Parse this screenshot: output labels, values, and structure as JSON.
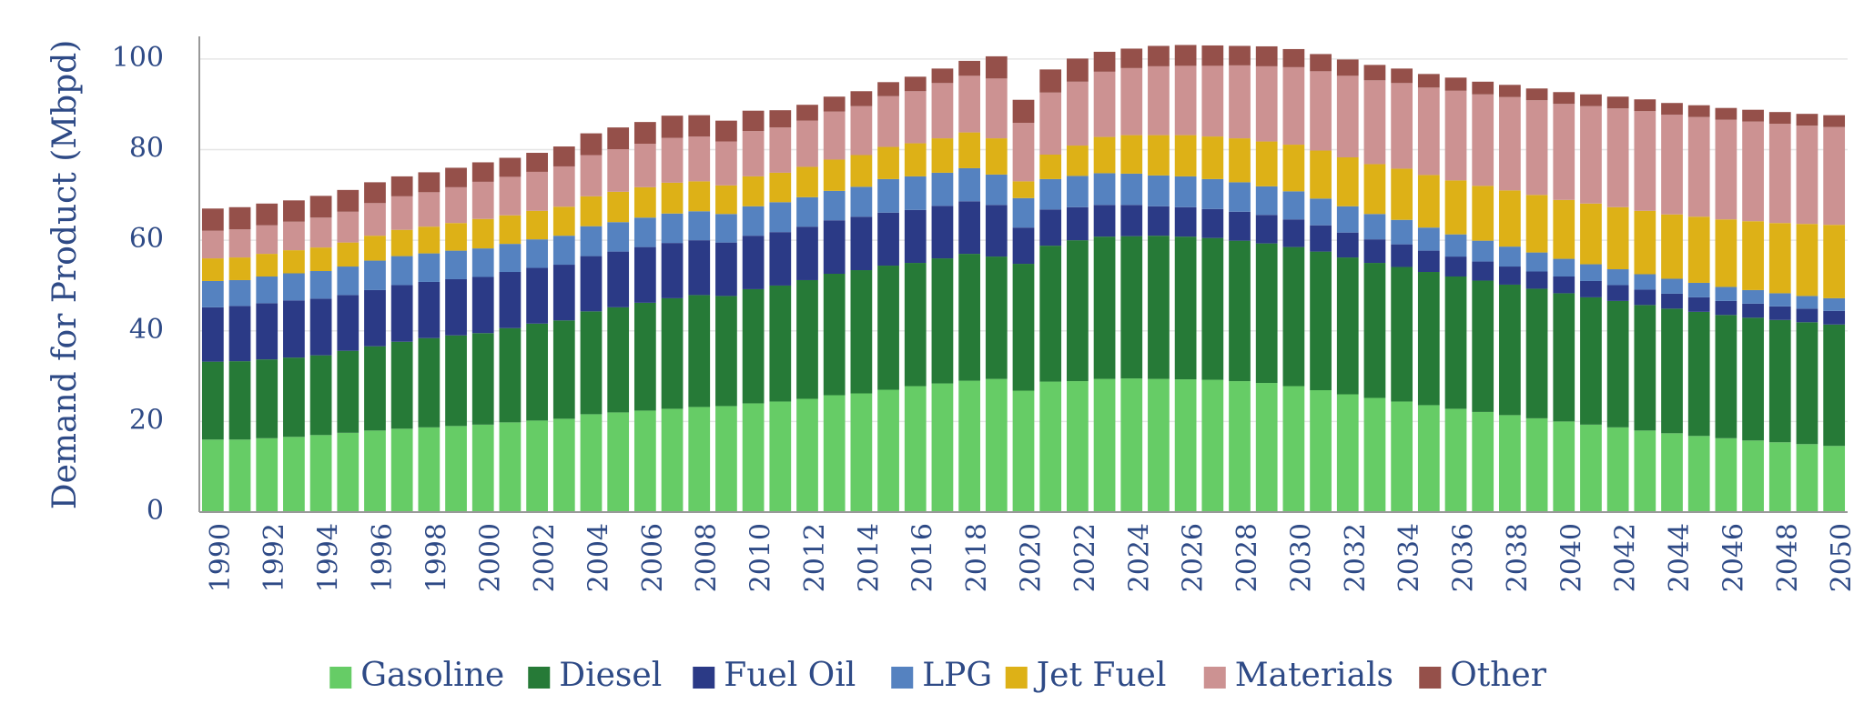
{
  "chart_data": {
    "type": "bar",
    "stacked": true,
    "title": "",
    "xlabel": "",
    "ylabel": "Demand for Product (Mbpd)",
    "ylim": [
      0,
      105
    ],
    "yticks": [
      "0",
      "20",
      "40",
      "60",
      "80",
      "100"
    ],
    "ytick_values": [
      0,
      20,
      40,
      60,
      80,
      100
    ],
    "grid": true,
    "legend_position": "bottom",
    "categories": [
      "1990",
      "1991",
      "1992",
      "1993",
      "1994",
      "1995",
      "1996",
      "1997",
      "1998",
      "1999",
      "2000",
      "2001",
      "2002",
      "2003",
      "2004",
      "2005",
      "2006",
      "2007",
      "2008",
      "2009",
      "2010",
      "2011",
      "2012",
      "2013",
      "2014",
      "2015",
      "2016",
      "2017",
      "2018",
      "2019",
      "2020",
      "2021",
      "2022",
      "2023",
      "2024",
      "2025",
      "2026",
      "2027",
      "2028",
      "2029",
      "2030",
      "2031",
      "2032",
      "2033",
      "2034",
      "2035",
      "2036",
      "2037",
      "2038",
      "2039",
      "2040",
      "2041",
      "2042",
      "2043",
      "2044",
      "2045",
      "2046",
      "2047",
      "2048",
      "2049",
      "2050"
    ],
    "xtick_labels": [
      "1990",
      "1992",
      "1994",
      "1996",
      "1998",
      "2000",
      "2002",
      "2004",
      "2006",
      "2008",
      "2010",
      "2012",
      "2014",
      "2016",
      "2018",
      "2020",
      "2022",
      "2024",
      "2026",
      "2028",
      "2030",
      "2032",
      "2034",
      "2036",
      "2038",
      "2040",
      "2042",
      "2044",
      "2046",
      "2048",
      "2050"
    ],
    "series": [
      {
        "name": "Gasoline",
        "color": "#66cc66",
        "values": [
          16,
          16,
          16.3,
          16.6,
          17,
          17.5,
          18,
          18.4,
          18.7,
          19,
          19.3,
          19.8,
          20.2,
          20.6,
          21.6,
          22,
          22.4,
          22.8,
          23.2,
          23.4,
          24,
          24.4,
          25,
          25.8,
          26.2,
          27,
          27.8,
          28.4,
          29,
          29.4,
          26.8,
          28.8,
          28.9,
          29.4,
          29.5,
          29.4,
          29.3,
          29.2,
          28.9,
          28.5,
          27.8,
          26.9,
          26,
          25.2,
          24.4,
          23.6,
          22.8,
          22.1,
          21.4,
          20.7,
          20,
          19.3,
          18.7,
          18,
          17.4,
          16.8,
          16.3,
          15.8,
          15.4,
          15,
          14.6
        ]
      },
      {
        "name": "Diesel",
        "color": "#267a37",
        "values": [
          17.2,
          17.3,
          17.4,
          17.5,
          17.6,
          18.1,
          18.6,
          19.2,
          19.7,
          20,
          20.2,
          20.8,
          21.4,
          21.7,
          22.7,
          23.2,
          23.8,
          24.4,
          24.7,
          24.3,
          25.2,
          25.6,
          26.2,
          26.8,
          27.2,
          27.4,
          27.2,
          27.6,
          28,
          27,
          28,
          30,
          31.1,
          31.4,
          31.4,
          31.6,
          31.5,
          31.3,
          31,
          30.8,
          30.7,
          30.6,
          30.2,
          29.8,
          29.7,
          29.4,
          29.2,
          29,
          28.8,
          28.6,
          28.3,
          28.1,
          27.9,
          27.7,
          27.5,
          27.4,
          27.2,
          27.1,
          27,
          26.9,
          26.8
        ]
      },
      {
        "name": "Fuel Oil",
        "color": "#2b3a86",
        "values": [
          12,
          12.2,
          12.4,
          12.6,
          12.5,
          12.3,
          12.4,
          12.5,
          12.4,
          12.4,
          12.4,
          12.4,
          12.3,
          12.3,
          12.2,
          12.3,
          12.3,
          12.2,
          12.1,
          11.8,
          11.8,
          11.8,
          11.8,
          11.8,
          11.8,
          11.7,
          11.7,
          11.6,
          11.6,
          11.4,
          8,
          8,
          7.3,
          7,
          6.9,
          6.5,
          6.5,
          6.4,
          6.4,
          6.3,
          6.1,
          5.8,
          5.5,
          5.2,
          5,
          4.7,
          4.4,
          4.2,
          4,
          3.8,
          3.7,
          3.6,
          3.5,
          3.4,
          3.3,
          3.2,
          3.1,
          3.1,
          3,
          3,
          3
        ]
      },
      {
        "name": "LPG",
        "color": "#5582c0",
        "values": [
          5.8,
          5.7,
          5.9,
          6,
          6.1,
          6.3,
          6.5,
          6.4,
          6.3,
          6.3,
          6.3,
          6.2,
          6.3,
          6.4,
          6.6,
          6.5,
          6.5,
          6.5,
          6.4,
          6.3,
          6.5,
          6.6,
          6.5,
          6.5,
          6.6,
          7.4,
          7.4,
          7.3,
          7.3,
          6.7,
          6.5,
          6.7,
          6.9,
          7,
          6.9,
          6.8,
          6.8,
          6.6,
          6.5,
          6.3,
          6.2,
          5.9,
          5.8,
          5.6,
          5.4,
          5.1,
          4.9,
          4.6,
          4.4,
          4.2,
          3.9,
          3.7,
          3.5,
          3.4,
          3.3,
          3.2,
          3.1,
          3,
          2.9,
          2.8,
          2.8
        ]
      },
      {
        "name": "Jet Fuel",
        "color": "#ddb117",
        "values": [
          5,
          5,
          5,
          5.1,
          5.2,
          5.3,
          5.5,
          5.8,
          5.9,
          6.1,
          6.5,
          6.3,
          6.3,
          6.4,
          6.6,
          6.7,
          6.7,
          6.8,
          6.6,
          6.3,
          6.6,
          6.5,
          6.7,
          6.9,
          7,
          7.1,
          7.3,
          7.6,
          7.9,
          8,
          3.7,
          5.4,
          6.7,
          8,
          8.5,
          8.9,
          9.1,
          9.4,
          9.7,
          9.9,
          10.3,
          10.6,
          10.8,
          11,
          11.3,
          11.6,
          11.9,
          12.1,
          12.4,
          12.7,
          13,
          13.4,
          13.7,
          14,
          14.2,
          14.6,
          14.9,
          15.2,
          15.5,
          15.9,
          16.2
        ]
      },
      {
        "name": "Materials",
        "color": "#cc9292",
        "values": [
          6.1,
          6.2,
          6.3,
          6.3,
          6.6,
          6.8,
          7.2,
          7.4,
          7.6,
          7.9,
          8.2,
          8.5,
          8.6,
          8.9,
          9.1,
          9.4,
          9.6,
          9.9,
          9.9,
          9.7,
          10,
          10,
          10.2,
          10.6,
          10.8,
          11.2,
          11.5,
          12.2,
          12.5,
          13.2,
          12.9,
          13.7,
          14.1,
          14.4,
          14.8,
          15.2,
          15.3,
          15.6,
          16.1,
          16.6,
          17.1,
          17.5,
          18,
          18.5,
          18.9,
          19.3,
          19.8,
          20.2,
          20.6,
          20.9,
          21.2,
          21.5,
          21.8,
          22,
          22,
          22,
          22,
          22,
          21.9,
          21.7,
          21.6
        ]
      },
      {
        "name": "Other",
        "color": "#95504a",
        "values": [
          4.9,
          4.9,
          4.8,
          4.7,
          4.8,
          4.8,
          4.6,
          4.4,
          4.4,
          4.3,
          4.3,
          4.2,
          4.2,
          4.4,
          4.8,
          4.8,
          4.8,
          4.9,
          4.7,
          4.6,
          4.5,
          3.8,
          3.5,
          3.3,
          3.3,
          3.1,
          3.2,
          3.2,
          3.3,
          4.9,
          5.1,
          5.1,
          5.1,
          4.4,
          4.3,
          4.5,
          4.6,
          4.5,
          4.3,
          4.4,
          4,
          3.8,
          3.6,
          3.4,
          3.2,
          3,
          2.9,
          2.8,
          2.7,
          2.6,
          2.6,
          2.6,
          2.6,
          2.6,
          2.6,
          2.6,
          2.6,
          2.6,
          2.6,
          2.6,
          2.6
        ]
      }
    ]
  }
}
